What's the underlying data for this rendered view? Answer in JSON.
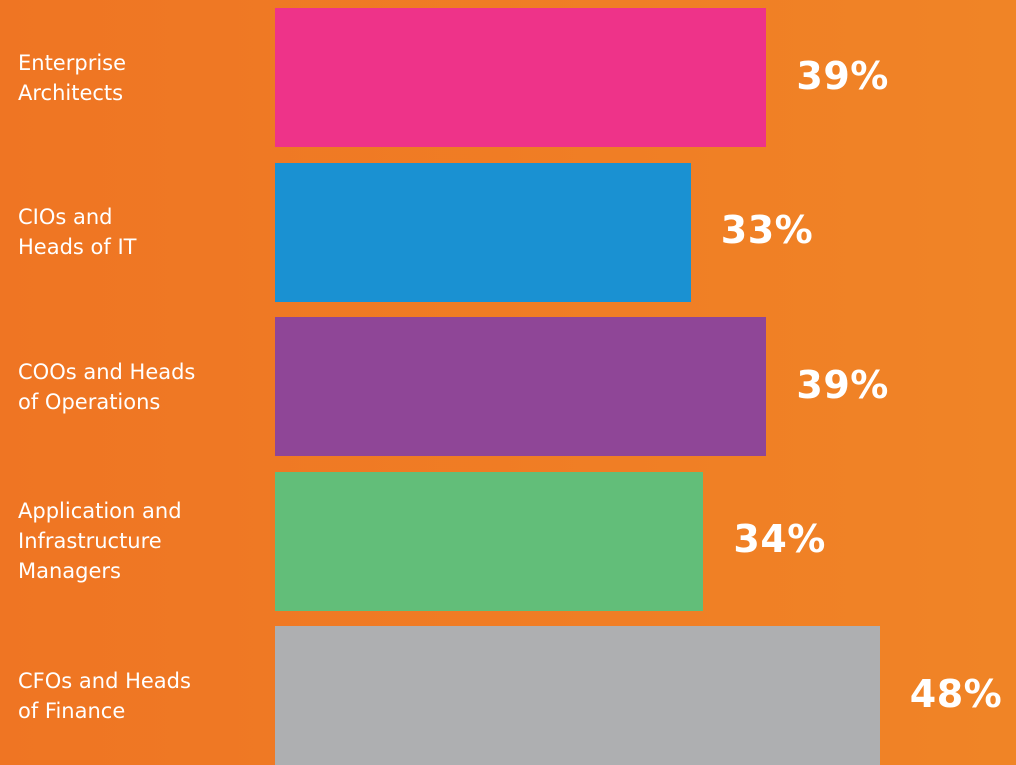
{
  "chart_data": {
    "type": "bar",
    "orientation": "horizontal",
    "title": "",
    "xlabel": "",
    "ylabel": "",
    "categories": [
      "Enterprise\nArchitects",
      "CIOs and\nHeads of IT",
      "COOs and Heads\nof Operations",
      "Application and\nInfrastructure\nManagers",
      "CFOs and Heads\nof Finance"
    ],
    "values": [
      39,
      33,
      39,
      34,
      48
    ],
    "value_labels": [
      "39%",
      "33%",
      "39%",
      "34%",
      "48%"
    ],
    "bar_colors": [
      "#ee3389",
      "#1a91d2",
      "#8f4697",
      "#62be79",
      "#aeafb1"
    ],
    "background_color": "#ef7b24",
    "label_color": "#ffffff",
    "grid": false,
    "legend": false
  }
}
